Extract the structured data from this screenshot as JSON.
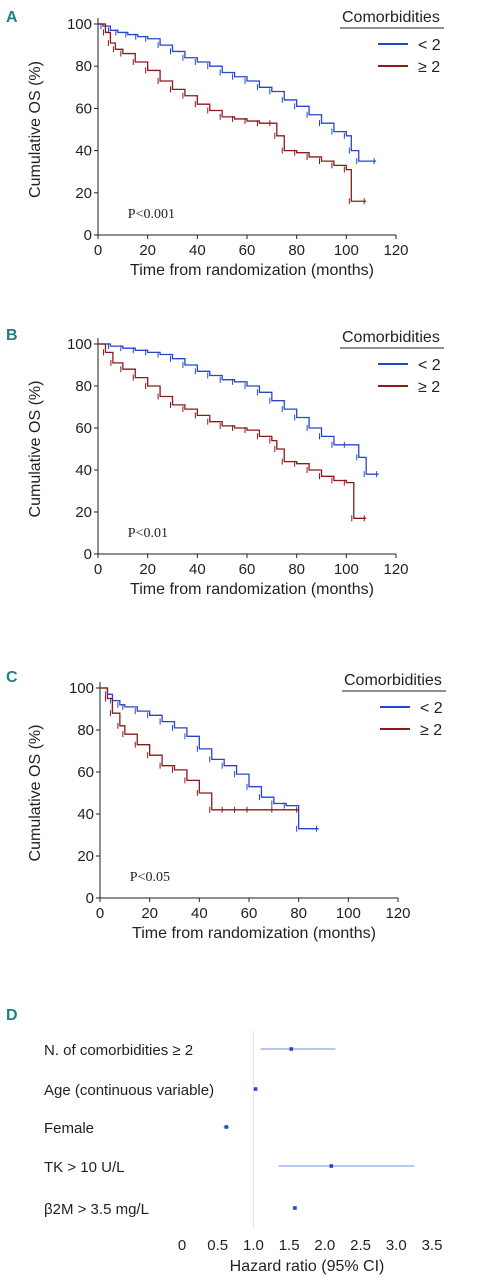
{
  "colors": {
    "group_lt2": "#2747c9",
    "group_ge2": "#8b1a1a",
    "censor_ge2": "#e06fb0",
    "forest_ci": "#8fa3e8",
    "forest_point": "#2747c9",
    "panel_letter": "#1e7f86",
    "axis": "#231f20"
  },
  "chart_data": [
    {
      "panel": "A",
      "type": "line",
      "ylabel": "Cumulative OS (%)",
      "xlabel": "Time from randomization (months)",
      "xlim": [
        0,
        120
      ],
      "ylim": [
        0,
        100
      ],
      "xticks": [
        0,
        20,
        40,
        60,
        80,
        100,
        120
      ],
      "yticks": [
        0,
        20,
        40,
        60,
        80,
        100
      ],
      "legend_title": "Comorbidities",
      "legend_placement": "top-right",
      "pvalue": "P<0.001",
      "series": [
        {
          "name": "< 2",
          "x": [
            0,
            2,
            5,
            8,
            12,
            16,
            20,
            25,
            30,
            35,
            40,
            45,
            50,
            55,
            60,
            65,
            70,
            75,
            80,
            85,
            90,
            95,
            100,
            102,
            105,
            112
          ],
          "y": [
            100,
            99,
            97,
            96,
            95,
            94,
            93,
            90,
            87,
            84,
            82,
            80,
            77,
            75,
            73,
            70,
            68,
            64,
            61,
            57,
            53,
            49,
            47,
            40,
            35,
            35
          ]
        },
        {
          "name": "≥ 2",
          "x": [
            0,
            3,
            5,
            7,
            10,
            15,
            20,
            25,
            30,
            35,
            40,
            45,
            50,
            55,
            60,
            65,
            70,
            72,
            75,
            80,
            85,
            90,
            95,
            100,
            102,
            108
          ],
          "y": [
            100,
            96,
            91,
            88,
            86,
            82,
            78,
            73,
            69,
            66,
            62,
            59,
            56,
            55,
            54,
            53,
            53,
            47,
            40,
            39,
            37,
            35,
            33,
            31,
            16,
            16
          ]
        }
      ]
    },
    {
      "panel": "B",
      "type": "line",
      "ylabel": "Cumulative OS (%)",
      "xlabel": "Time from randomization (months)",
      "xlim": [
        0,
        120
      ],
      "ylim": [
        0,
        100
      ],
      "xticks": [
        0,
        20,
        40,
        60,
        80,
        100,
        120
      ],
      "yticks": [
        0,
        20,
        40,
        60,
        80,
        100
      ],
      "legend_title": "Comorbidities",
      "legend_placement": "top-right",
      "pvalue": "P<0.01",
      "series": [
        {
          "name": "< 2",
          "x": [
            0,
            5,
            10,
            15,
            20,
            25,
            30,
            35,
            40,
            45,
            50,
            55,
            60,
            65,
            70,
            75,
            80,
            85,
            90,
            95,
            100,
            105,
            108,
            113
          ],
          "y": [
            100,
            99,
            98,
            97,
            96,
            95,
            93,
            90,
            87,
            85,
            83,
            82,
            80,
            77,
            73,
            69,
            65,
            60,
            56,
            52,
            52,
            46,
            38,
            38
          ]
        },
        {
          "name": "≥ 2",
          "x": [
            0,
            3,
            6,
            10,
            15,
            20,
            25,
            30,
            35,
            40,
            45,
            50,
            55,
            60,
            65,
            70,
            72,
            75,
            80,
            85,
            90,
            95,
            100,
            103,
            108
          ],
          "y": [
            100,
            96,
            91,
            88,
            84,
            80,
            75,
            71,
            69,
            66,
            63,
            61,
            60,
            59,
            56,
            54,
            50,
            44,
            43,
            40,
            37,
            35,
            34,
            17,
            17
          ]
        }
      ]
    },
    {
      "panel": "C",
      "type": "line",
      "ylabel": "Cumulative OS (%)",
      "xlabel": "Time from randomization (months)",
      "xlim": [
        0,
        120
      ],
      "ylim": [
        0,
        100
      ],
      "xticks": [
        0,
        20,
        40,
        60,
        80,
        100,
        120
      ],
      "yticks": [
        0,
        20,
        40,
        60,
        80,
        100
      ],
      "legend_title": "Comorbidities",
      "legend_placement": "top-right",
      "pvalue": "P<0.05",
      "series": [
        {
          "name": "< 2",
          "x": [
            0,
            3,
            5,
            8,
            10,
            15,
            20,
            25,
            30,
            35,
            40,
            45,
            50,
            55,
            60,
            65,
            70,
            75,
            80,
            88
          ],
          "y": [
            100,
            97,
            94,
            92,
            91,
            89,
            87,
            84,
            81,
            77,
            71,
            66,
            63,
            59,
            53,
            48,
            45,
            44,
            33,
            33
          ]
        },
        {
          "name": "≥ 2",
          "x": [
            0,
            3,
            5,
            8,
            10,
            15,
            20,
            25,
            30,
            35,
            40,
            45,
            50,
            55,
            60,
            70,
            80
          ],
          "y": [
            100,
            95,
            88,
            82,
            78,
            73,
            68,
            63,
            61,
            56,
            50,
            42,
            42,
            42,
            42,
            42,
            42
          ]
        }
      ]
    },
    {
      "panel": "D",
      "type": "scatter",
      "xlabel": "Hazard ratio (95% CI)",
      "xlim": [
        0,
        3.5
      ],
      "xticks": [
        "0",
        "0.5",
        "1.0",
        "1.5",
        "2.0",
        "2.5",
        "3.0",
        "3.5"
      ],
      "reference_line": 1.0,
      "rows": [
        {
          "label": "N. of comorbidities ≥ 2",
          "hr": 1.53,
          "ci": [
            1.1,
            2.15
          ]
        },
        {
          "label": "Age (continuous variable)",
          "hr": 1.03,
          "ci": [
            1.01,
            1.05
          ]
        },
        {
          "label": "Female",
          "hr": 0.62,
          "ci": [
            0.58,
            0.66
          ]
        },
        {
          "label": "TK > 10 U/L",
          "hr": 2.09,
          "ci": [
            1.35,
            3.25
          ]
        },
        {
          "label": "β2M > 3.5 mg/L",
          "hr": 1.58,
          "ci": [
            1.55,
            1.61
          ]
        }
      ]
    }
  ],
  "panels": {
    "A": {
      "letter": "A",
      "ylabel": "Cumulative OS (%)",
      "xlabel": "Time from randomization (months)",
      "legend_title": "Comorbidities",
      "legend": [
        "< 2",
        "≥ 2"
      ],
      "pvalue": "P<0.001"
    },
    "B": {
      "letter": "B",
      "ylabel": "Cumulative OS (%)",
      "xlabel": "Time from randomization (months)",
      "legend_title": "Comorbidities",
      "legend": [
        "< 2",
        "≥ 2"
      ],
      "pvalue": "P<0.01"
    },
    "C": {
      "letter": "C",
      "ylabel": "Cumulative OS (%)",
      "xlabel": "Time from randomization (months)",
      "legend_title": "Comorbidities",
      "legend": [
        "< 2",
        "≥ 2"
      ],
      "pvalue": "P<0.05"
    },
    "D": {
      "letter": "D",
      "xlabel": "Hazard ratio (95% CI)"
    }
  }
}
